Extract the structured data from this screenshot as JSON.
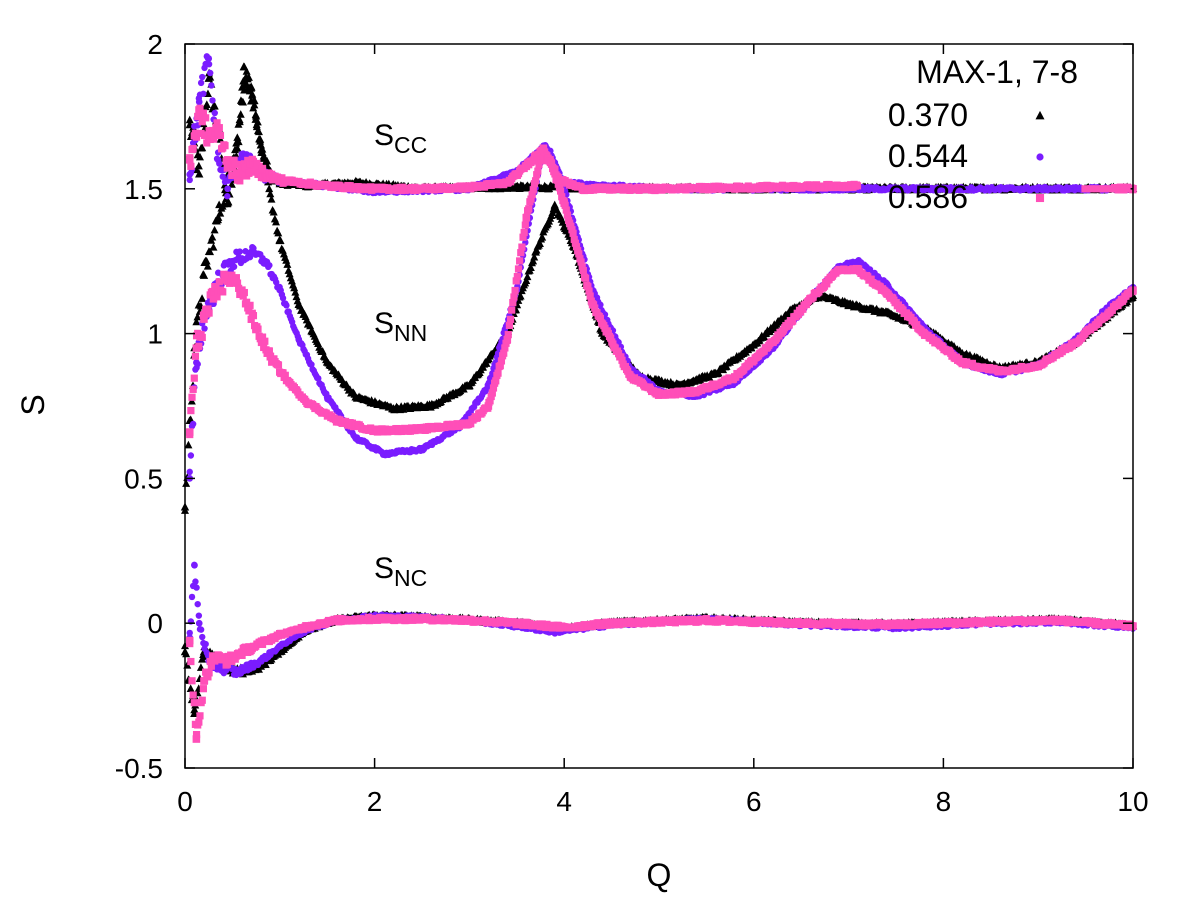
{
  "chart_data": {
    "type": "scatter",
    "title": "",
    "xlabel": "Q",
    "ylabel": "S",
    "xlim": [
      0,
      10
    ],
    "ylim": [
      -0.5,
      2
    ],
    "xticks": [
      "0",
      "2",
      "4",
      "6",
      "8",
      "10"
    ],
    "xtick_values": [
      0,
      2,
      4,
      6,
      8,
      10
    ],
    "yticks": [
      "-0.5",
      "0",
      "0.5",
      "1",
      "1.5",
      "2"
    ],
    "ytick_values": [
      -0.5,
      0,
      0.5,
      1,
      1.5,
      2
    ],
    "grid": false,
    "legend_title": "MAX-1, 7-8",
    "legend_position": "top-right",
    "annotations": [
      {
        "base": "S",
        "sub": "CC",
        "x": 2.0,
        "y": 1.66
      },
      {
        "base": "S",
        "sub": "NN",
        "x": 2.0,
        "y": 1.0
      },
      {
        "base": "S",
        "sub": "NC",
        "x": 2.0,
        "y": 0.15
      }
    ],
    "series": [
      {
        "name": "0.370",
        "color": "#000000",
        "marker": "triangle",
        "S_CC": [
          [
            0.05,
            1.72
          ],
          [
            0.15,
            1.55
          ],
          [
            0.25,
            1.88
          ],
          [
            0.35,
            1.7
          ],
          [
            0.45,
            1.45
          ],
          [
            0.55,
            1.6
          ],
          [
            0.62,
            1.92
          ],
          [
            0.7,
            1.85
          ],
          [
            0.8,
            1.65
          ],
          [
            0.9,
            1.55
          ],
          [
            1.0,
            1.52
          ],
          [
            1.3,
            1.51
          ],
          [
            1.8,
            1.52
          ],
          [
            2.5,
            1.5
          ],
          [
            3.5,
            1.505
          ],
          [
            5.0,
            1.5
          ],
          [
            7.0,
            1.5
          ],
          [
            10.0,
            1.5
          ]
        ],
        "S_NN": [
          [
            0.0,
            0.4
          ],
          [
            0.1,
            0.95
          ],
          [
            0.2,
            1.2
          ],
          [
            0.35,
            1.4
          ],
          [
            0.5,
            1.6
          ],
          [
            0.65,
            1.88
          ],
          [
            0.75,
            1.75
          ],
          [
            0.85,
            1.55
          ],
          [
            1.0,
            1.32
          ],
          [
            1.2,
            1.1
          ],
          [
            1.5,
            0.9
          ],
          [
            1.8,
            0.78
          ],
          [
            2.2,
            0.74
          ],
          [
            2.6,
            0.75
          ],
          [
            3.0,
            0.82
          ],
          [
            3.4,
            1.0
          ],
          [
            3.7,
            1.28
          ],
          [
            3.9,
            1.44
          ],
          [
            4.1,
            1.3
          ],
          [
            4.4,
            1.0
          ],
          [
            4.8,
            0.85
          ],
          [
            5.2,
            0.82
          ],
          [
            5.6,
            0.86
          ],
          [
            6.0,
            0.96
          ],
          [
            6.4,
            1.08
          ],
          [
            6.7,
            1.13
          ],
          [
            7.0,
            1.1
          ],
          [
            7.4,
            1.07
          ],
          [
            7.8,
            1.02
          ],
          [
            8.2,
            0.93
          ],
          [
            8.6,
            0.88
          ],
          [
            9.0,
            0.9
          ],
          [
            9.4,
            0.97
          ],
          [
            9.7,
            1.05
          ],
          [
            10.0,
            1.13
          ]
        ],
        "S_NC": [
          [
            0.0,
            -0.1
          ],
          [
            0.1,
            -0.3
          ],
          [
            0.2,
            -0.1
          ],
          [
            0.35,
            -0.14
          ],
          [
            0.55,
            -0.17
          ],
          [
            0.8,
            -0.15
          ],
          [
            1.0,
            -0.1
          ],
          [
            1.3,
            -0.02
          ],
          [
            1.6,
            0.01
          ],
          [
            2.0,
            0.025
          ],
          [
            2.5,
            0.02
          ],
          [
            3.0,
            0.01
          ],
          [
            3.5,
            0.0
          ],
          [
            4.0,
            -0.02
          ],
          [
            4.5,
            0.0
          ],
          [
            5.5,
            0.015
          ],
          [
            6.5,
            0.0
          ],
          [
            7.5,
            -0.005
          ],
          [
            8.5,
            0.005
          ],
          [
            9.2,
            0.01
          ],
          [
            10.0,
            -0.01
          ]
        ]
      },
      {
        "name": "0.544",
        "color": "#7a1cff",
        "marker": "circle",
        "S_CC": [
          [
            0.05,
            1.55
          ],
          [
            0.15,
            1.8
          ],
          [
            0.25,
            1.95
          ],
          [
            0.35,
            1.6
          ],
          [
            0.45,
            1.5
          ],
          [
            0.6,
            1.62
          ],
          [
            0.8,
            1.55
          ],
          [
            1.0,
            1.53
          ],
          [
            1.5,
            1.51
          ],
          [
            2.0,
            1.49
          ],
          [
            3.0,
            1.5
          ],
          [
            3.5,
            1.56
          ],
          [
            3.8,
            1.65
          ],
          [
            4.0,
            1.52
          ],
          [
            5.0,
            1.5
          ],
          [
            7.0,
            1.5
          ],
          [
            10.0,
            1.5
          ]
        ],
        "S_NN": [
          [
            0.05,
            0.5
          ],
          [
            0.12,
            0.9
          ],
          [
            0.2,
            1.05
          ],
          [
            0.35,
            1.18
          ],
          [
            0.5,
            1.25
          ],
          [
            0.7,
            1.28
          ],
          [
            0.85,
            1.25
          ],
          [
            1.0,
            1.15
          ],
          [
            1.2,
            0.98
          ],
          [
            1.5,
            0.78
          ],
          [
            1.8,
            0.64
          ],
          [
            2.1,
            0.585
          ],
          [
            2.5,
            0.6
          ],
          [
            2.9,
            0.68
          ],
          [
            3.2,
            0.82
          ],
          [
            3.5,
            1.15
          ],
          [
            3.75,
            1.6
          ],
          [
            3.85,
            1.63
          ],
          [
            4.0,
            1.5
          ],
          [
            4.3,
            1.15
          ],
          [
            4.7,
            0.88
          ],
          [
            5.0,
            0.8
          ],
          [
            5.4,
            0.785
          ],
          [
            5.8,
            0.83
          ],
          [
            6.2,
            0.95
          ],
          [
            6.6,
            1.12
          ],
          [
            6.9,
            1.23
          ],
          [
            7.1,
            1.25
          ],
          [
            7.4,
            1.17
          ],
          [
            7.8,
            1.02
          ],
          [
            8.2,
            0.9
          ],
          [
            8.6,
            0.86
          ],
          [
            9.0,
            0.89
          ],
          [
            9.4,
            0.98
          ],
          [
            9.7,
            1.08
          ],
          [
            10.0,
            1.16
          ]
        ],
        "S_NC": [
          [
            0.05,
            -0.05
          ],
          [
            0.1,
            0.2
          ],
          [
            0.15,
            0.0
          ],
          [
            0.25,
            -0.13
          ],
          [
            0.35,
            -0.15
          ],
          [
            0.55,
            -0.17
          ],
          [
            0.8,
            -0.13
          ],
          [
            1.0,
            -0.08
          ],
          [
            1.3,
            -0.02
          ],
          [
            1.6,
            0.01
          ],
          [
            2.0,
            0.025
          ],
          [
            2.5,
            0.02
          ],
          [
            3.0,
            0.01
          ],
          [
            3.5,
            -0.01
          ],
          [
            3.9,
            -0.03
          ],
          [
            4.5,
            -0.005
          ],
          [
            5.5,
            0.015
          ],
          [
            6.5,
            -0.005
          ],
          [
            7.5,
            -0.015
          ],
          [
            8.5,
            0.0
          ],
          [
            9.2,
            0.005
          ],
          [
            10.0,
            -0.015
          ]
        ]
      },
      {
        "name": "0.586",
        "color": "#ff4fb8",
        "marker": "square",
        "S_CC": [
          [
            0.05,
            1.6
          ],
          [
            0.15,
            1.75
          ],
          [
            0.25,
            1.68
          ],
          [
            0.35,
            1.7
          ],
          [
            0.45,
            1.6
          ],
          [
            0.55,
            1.55
          ],
          [
            0.7,
            1.58
          ],
          [
            0.85,
            1.55
          ],
          [
            1.0,
            1.53
          ],
          [
            1.5,
            1.51
          ],
          [
            2.0,
            1.5
          ],
          [
            2.5,
            1.5
          ],
          [
            3.0,
            1.505
          ],
          [
            3.4,
            1.52
          ],
          [
            3.6,
            1.58
          ],
          [
            3.78,
            1.64
          ],
          [
            3.95,
            1.53
          ],
          [
            4.2,
            1.5
          ],
          [
            5.0,
            1.5
          ],
          [
            7.0,
            1.51
          ],
          [
            10.0,
            1.5
          ]
        ],
        "S_NN": [
          [
            0.05,
            0.66
          ],
          [
            0.12,
            0.95
          ],
          [
            0.2,
            1.05
          ],
          [
            0.3,
            1.12
          ],
          [
            0.45,
            1.2
          ],
          [
            0.6,
            1.15
          ],
          [
            0.75,
            1.02
          ],
          [
            0.9,
            0.92
          ],
          [
            1.1,
            0.83
          ],
          [
            1.3,
            0.76
          ],
          [
            1.6,
            0.7
          ],
          [
            2.0,
            0.665
          ],
          [
            2.5,
            0.67
          ],
          [
            3.0,
            0.69
          ],
          [
            3.2,
            0.75
          ],
          [
            3.4,
            0.98
          ],
          [
            3.6,
            1.4
          ],
          [
            3.75,
            1.6
          ],
          [
            3.85,
            1.6
          ],
          [
            4.0,
            1.45
          ],
          [
            4.3,
            1.1
          ],
          [
            4.7,
            0.85
          ],
          [
            5.0,
            0.79
          ],
          [
            5.4,
            0.8
          ],
          [
            5.8,
            0.85
          ],
          [
            6.2,
            0.97
          ],
          [
            6.6,
            1.12
          ],
          [
            6.9,
            1.22
          ],
          [
            7.1,
            1.22
          ],
          [
            7.4,
            1.14
          ],
          [
            7.8,
            1.0
          ],
          [
            8.2,
            0.9
          ],
          [
            8.6,
            0.87
          ],
          [
            9.0,
            0.89
          ],
          [
            9.4,
            0.97
          ],
          [
            9.7,
            1.06
          ],
          [
            10.0,
            1.15
          ]
        ],
        "S_NC": [
          [
            0.05,
            -0.06
          ],
          [
            0.12,
            -0.4
          ],
          [
            0.2,
            -0.2
          ],
          [
            0.3,
            -0.12
          ],
          [
            0.45,
            -0.13
          ],
          [
            0.6,
            -0.1
          ],
          [
            0.8,
            -0.07
          ],
          [
            1.0,
            -0.04
          ],
          [
            1.3,
            -0.01
          ],
          [
            1.6,
            0.01
          ],
          [
            2.0,
            0.015
          ],
          [
            2.5,
            0.015
          ],
          [
            3.0,
            0.01
          ],
          [
            3.5,
            0.0
          ],
          [
            4.0,
            -0.015
          ],
          [
            4.5,
            0.0
          ],
          [
            5.5,
            0.01
          ],
          [
            6.5,
            0.0
          ],
          [
            7.5,
            -0.005
          ],
          [
            8.5,
            0.005
          ],
          [
            9.2,
            0.01
          ],
          [
            10.0,
            -0.01
          ]
        ]
      }
    ]
  }
}
